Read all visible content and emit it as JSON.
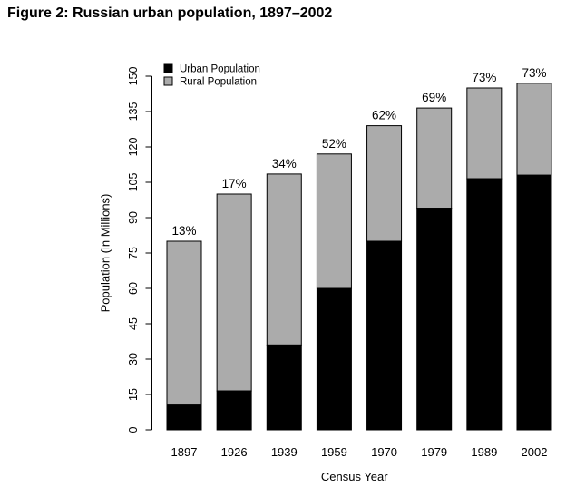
{
  "title": "Figure 2: Russian urban population, 1897–2002",
  "colors": {
    "urban": "#000000",
    "rural": "#ababab",
    "axis": "#000000",
    "text": "#000000",
    "background": "#ffffff"
  },
  "chart_data": {
    "type": "bar",
    "stacked": true,
    "title": "Figure 2: Russian urban population, 1897–2002",
    "xlabel": "Census Year",
    "ylabel": "Population (in Millions)",
    "ylim": [
      0,
      150
    ],
    "yticks": [
      0,
      15,
      30,
      45,
      60,
      75,
      90,
      105,
      120,
      135,
      150
    ],
    "grid": false,
    "legend_position": "top-left",
    "categories": [
      "1897",
      "1926",
      "1939",
      "1959",
      "1970",
      "1979",
      "1989",
      "2002"
    ],
    "series": [
      {
        "name": "Urban Population",
        "color": "#000000",
        "values": [
          10.5,
          16.5,
          36,
          60,
          80,
          94,
          106.5,
          108
        ]
      },
      {
        "name": "Rural Population",
        "color": "#ababab",
        "values": [
          69.5,
          83.5,
          72.5,
          57,
          49,
          42.5,
          38.5,
          39
        ]
      }
    ],
    "totals": [
      80,
      100,
      108.5,
      117,
      129,
      136.5,
      145,
      147
    ],
    "bar_labels": [
      "13%",
      "17%",
      "34%",
      "52%",
      "62%",
      "69%",
      "73%",
      "73%"
    ]
  }
}
